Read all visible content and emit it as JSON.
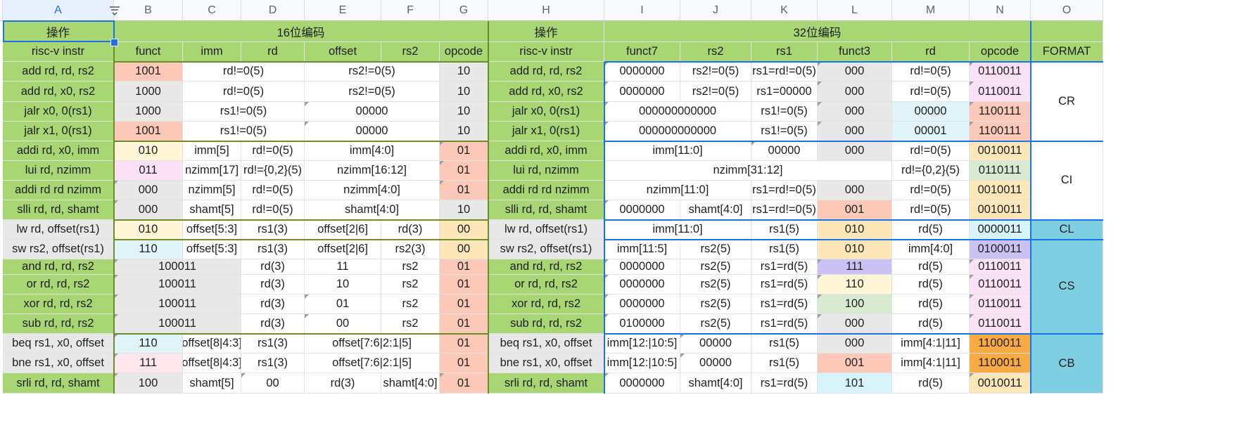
{
  "columns": [
    "A",
    "B",
    "C",
    "D",
    "E",
    "F",
    "G",
    "H",
    "I",
    "J",
    "K",
    "L",
    "M",
    "N",
    "O"
  ],
  "selected_column": "A",
  "palette": {
    "green": "#a8d672",
    "gray": "#e8e8e8",
    "salmon": "#fcc9b9",
    "pink": "#fbe1f5",
    "lightpink": "#fde7ec",
    "yellow": "#fff5d7",
    "peach": "#fde6b7",
    "lightblue": "#e0f4fa",
    "sage": "#d9ead3",
    "lavender": "#cbc1f2",
    "orange": "#f9aa42",
    "aqua": "#d7f3fb",
    "cyan": "#7ecfe2",
    "blue": "#1a73e8",
    "olive": "#6e8c2a"
  },
  "rows": [
    [
      {
        "c": 0,
        "s": 1,
        "t": "操作",
        "bg": "green"
      },
      {
        "c": 1,
        "s": 6,
        "t": "16位编码",
        "bg": "green"
      },
      {
        "c": 7,
        "s": 1,
        "t": "操作",
        "bg": "green"
      },
      {
        "c": 8,
        "s": 6,
        "t": "32位编码",
        "bg": "green"
      },
      {
        "c": 14,
        "s": 1,
        "t": "",
        "bg": "green"
      }
    ],
    [
      {
        "c": 0,
        "t": "risc-v instr",
        "bg": "green"
      },
      {
        "c": 1,
        "t": "funct",
        "bg": "green"
      },
      {
        "c": 2,
        "t": "imm",
        "bg": "green"
      },
      {
        "c": 3,
        "t": "rd",
        "bg": "green"
      },
      {
        "c": 4,
        "t": "offset",
        "bg": "green"
      },
      {
        "c": 5,
        "t": "rs2",
        "bg": "green"
      },
      {
        "c": 6,
        "t": "opcode",
        "bg": "green"
      },
      {
        "c": 7,
        "t": "risc-v instr",
        "bg": "green"
      },
      {
        "c": 8,
        "t": "funct7",
        "bg": "green"
      },
      {
        "c": 9,
        "t": "rs2",
        "bg": "green"
      },
      {
        "c": 10,
        "t": "rs1",
        "bg": "green"
      },
      {
        "c": 11,
        "t": "funct3",
        "bg": "green"
      },
      {
        "c": 12,
        "t": "rd",
        "bg": "green"
      },
      {
        "c": 13,
        "t": "opcode",
        "bg": "green"
      },
      {
        "c": 14,
        "t": "FORMAT",
        "bg": "green"
      }
    ],
    [
      {
        "c": 0,
        "t": "add rd, rd, rs2",
        "bg": "green"
      },
      {
        "c": 1,
        "t": "1001",
        "bg": "salmon"
      },
      {
        "c": 2,
        "s": 2,
        "t": "rd!=0(5)"
      },
      {
        "c": 4,
        "s": 2,
        "t": "rs2!=0(5)"
      },
      {
        "c": 6,
        "t": "10",
        "bg": "gray"
      },
      {
        "c": 7,
        "t": "add rd, rd, rs2",
        "bg": "green"
      },
      {
        "c": 8,
        "t": "0000000",
        "tri": true
      },
      {
        "c": 9,
        "t": "rs2!=0(5)"
      },
      {
        "c": 10,
        "t": "rs1=rd!=0(5)"
      },
      {
        "c": 11,
        "t": "000",
        "bg": "gray",
        "tri": true
      },
      {
        "c": 12,
        "t": "rd!=0(5)"
      },
      {
        "c": 13,
        "t": "0110011",
        "bg": "pink",
        "tri": true
      },
      {
        "c": 14,
        "t": "CR",
        "rs": 4
      }
    ],
    [
      {
        "c": 0,
        "t": "add rd, x0, rs2",
        "bg": "green"
      },
      {
        "c": 1,
        "t": "1000",
        "bg": "gray"
      },
      {
        "c": 2,
        "s": 2,
        "t": "rd!=0(5)"
      },
      {
        "c": 4,
        "s": 2,
        "t": "rs2!=0(5)"
      },
      {
        "c": 6,
        "t": "10",
        "bg": "gray"
      },
      {
        "c": 7,
        "t": "add rd, x0, rs2",
        "bg": "green"
      },
      {
        "c": 8,
        "t": "0000000",
        "tri": true
      },
      {
        "c": 9,
        "t": "rs2!=0(5)"
      },
      {
        "c": 10,
        "t": "rs1=00000"
      },
      {
        "c": 11,
        "t": "000",
        "bg": "gray",
        "tri": true
      },
      {
        "c": 12,
        "t": "rd!=0(5)"
      },
      {
        "c": 13,
        "t": "0110011",
        "bg": "pink",
        "tri": true
      }
    ],
    [
      {
        "c": 0,
        "t": "jalr x0, 0(rs1)",
        "bg": "green"
      },
      {
        "c": 1,
        "t": "1000",
        "bg": "gray"
      },
      {
        "c": 2,
        "s": 2,
        "t": "rs1!=0(5)"
      },
      {
        "c": 4,
        "s": 2,
        "t": "00000",
        "tri": true
      },
      {
        "c": 6,
        "t": "10",
        "bg": "gray"
      },
      {
        "c": 7,
        "t": "jalr x0, 0(rs1)",
        "bg": "green"
      },
      {
        "c": 8,
        "s": 2,
        "t": "000000000000",
        "tri": true
      },
      {
        "c": 10,
        "t": "rs1!=0(5)"
      },
      {
        "c": 11,
        "t": "000",
        "bg": "gray",
        "tri": true
      },
      {
        "c": 12,
        "t": "00000",
        "bg": "lightblue"
      },
      {
        "c": 13,
        "t": "1100111",
        "bg": "salmon",
        "tri": true
      }
    ],
    [
      {
        "c": 0,
        "t": "jalr x1, 0(rs1)",
        "bg": "green"
      },
      {
        "c": 1,
        "t": "1001",
        "bg": "salmon"
      },
      {
        "c": 2,
        "s": 2,
        "t": "rs1!=0(5)"
      },
      {
        "c": 4,
        "s": 2,
        "t": "00000",
        "tri": true
      },
      {
        "c": 6,
        "t": "10",
        "bg": "gray"
      },
      {
        "c": 7,
        "t": "jalr x1, 0(rs1)",
        "bg": "green"
      },
      {
        "c": 8,
        "s": 2,
        "t": "000000000000",
        "tri": true
      },
      {
        "c": 10,
        "t": "rs1!=0(5)"
      },
      {
        "c": 11,
        "t": "000",
        "bg": "gray",
        "tri": true
      },
      {
        "c": 12,
        "t": "00001",
        "bg": "lightblue"
      },
      {
        "c": 13,
        "t": "1100111",
        "bg": "salmon",
        "tri": true
      }
    ],
    [
      {
        "c": 0,
        "t": "addi rd, x0, imm",
        "bg": "green"
      },
      {
        "c": 1,
        "t": "010",
        "bg": "yellow"
      },
      {
        "c": 2,
        "t": "imm[5]"
      },
      {
        "c": 3,
        "t": "rd!=0(5)"
      },
      {
        "c": 4,
        "s": 2,
        "t": "imm[4:0]"
      },
      {
        "c": 6,
        "t": "01",
        "bg": "salmon",
        "tri": true
      },
      {
        "c": 7,
        "t": "addi rd, x0, imm",
        "bg": "green"
      },
      {
        "c": 8,
        "s": 2,
        "t": "imm[11:0]"
      },
      {
        "c": 10,
        "t": "00000",
        "tri": true
      },
      {
        "c": 11,
        "t": "000",
        "bg": "gray"
      },
      {
        "c": 12,
        "t": "rd!=0(5)"
      },
      {
        "c": 13,
        "t": "0010011",
        "bg": "peach"
      },
      {
        "c": 14,
        "t": "CI",
        "rs": 4
      }
    ],
    [
      {
        "c": 0,
        "t": "lui rd, nzimm",
        "bg": "green"
      },
      {
        "c": 1,
        "t": "011",
        "bg": "pink"
      },
      {
        "c": 2,
        "t": "nzimm[17]"
      },
      {
        "c": 3,
        "t": "rd!={0,2}(5)"
      },
      {
        "c": 4,
        "s": 2,
        "t": "nzimm[16:12]"
      },
      {
        "c": 6,
        "t": "01",
        "bg": "salmon",
        "tri": true
      },
      {
        "c": 7,
        "t": "lui rd, nzimm",
        "bg": "green"
      },
      {
        "c": 8,
        "s": 4,
        "t": "nzimm[31:12]"
      },
      {
        "c": 12,
        "t": "rd!={0,2}(5)"
      },
      {
        "c": 13,
        "t": "0110111",
        "bg": "sage"
      }
    ],
    [
      {
        "c": 0,
        "t": "addi rd rd nzimm",
        "bg": "green"
      },
      {
        "c": 1,
        "t": "000",
        "bg": "gray",
        "tri": true
      },
      {
        "c": 2,
        "t": "nzimm[5]"
      },
      {
        "c": 3,
        "t": "rd!=0(5)"
      },
      {
        "c": 4,
        "s": 2,
        "t": "nzimm[4:0]"
      },
      {
        "c": 6,
        "t": "01",
        "bg": "salmon",
        "tri": true
      },
      {
        "c": 7,
        "t": "addi rd rd nzimm",
        "bg": "green"
      },
      {
        "c": 8,
        "s": 2,
        "t": "nzimm[11:0]"
      },
      {
        "c": 10,
        "t": "rs1=rd!=0(5)"
      },
      {
        "c": 11,
        "t": "000",
        "bg": "gray"
      },
      {
        "c": 12,
        "t": "rd!=0(5)"
      },
      {
        "c": 13,
        "t": "0010011",
        "bg": "peach"
      }
    ],
    [
      {
        "c": 0,
        "t": "slli rd, rd, shamt",
        "bg": "green"
      },
      {
        "c": 1,
        "t": "000",
        "bg": "gray",
        "tri": true
      },
      {
        "c": 2,
        "t": "shamt[5]"
      },
      {
        "c": 3,
        "t": "rd!=0(5)"
      },
      {
        "c": 4,
        "s": 2,
        "t": "shamt[4:0]"
      },
      {
        "c": 6,
        "t": "10",
        "bg": "gray"
      },
      {
        "c": 7,
        "t": "slli rd, rd, shamt",
        "bg": "green"
      },
      {
        "c": 8,
        "t": "0000000",
        "tri": true
      },
      {
        "c": 9,
        "t": "shamt[4:0]"
      },
      {
        "c": 10,
        "t": "rs1=rd!=0(5)"
      },
      {
        "c": 11,
        "t": "001",
        "bg": "salmon"
      },
      {
        "c": 12,
        "t": "rd!=0(5)"
      },
      {
        "c": 13,
        "t": "0010011",
        "bg": "peach"
      }
    ],
    [
      {
        "c": 0,
        "t": "lw rd, offset(rs1)",
        "bg": "gray"
      },
      {
        "c": 1,
        "t": "010",
        "bg": "yellow"
      },
      {
        "c": 2,
        "t": "offset[5:3]"
      },
      {
        "c": 3,
        "t": "rs1(3)"
      },
      {
        "c": 4,
        "t": "offset[2|6]"
      },
      {
        "c": 5,
        "t": "rd(3)"
      },
      {
        "c": 6,
        "t": "00",
        "bg": "peach"
      },
      {
        "c": 7,
        "t": "lw rd, offset(rs1)",
        "bg": "gray"
      },
      {
        "c": 8,
        "s": 2,
        "t": "imm[11:0]"
      },
      {
        "c": 10,
        "t": "rs1(5)"
      },
      {
        "c": 11,
        "t": "010",
        "bg": "peach"
      },
      {
        "c": 12,
        "t": "rd(5)"
      },
      {
        "c": 13,
        "t": "0000011",
        "bg": "aqua"
      },
      {
        "c": 14,
        "t": "CL",
        "bg": "cyan"
      }
    ],
    [
      {
        "c": 0,
        "t": "sw rs2, offset(rs1)",
        "bg": "gray"
      },
      {
        "c": 1,
        "t": "110",
        "bg": "lightblue"
      },
      {
        "c": 2,
        "t": "offset[5:3]"
      },
      {
        "c": 3,
        "t": "rs1(3)"
      },
      {
        "c": 4,
        "t": "offset[2|6]"
      },
      {
        "c": 5,
        "t": "rs2(3)"
      },
      {
        "c": 6,
        "t": "00",
        "bg": "peach"
      },
      {
        "c": 7,
        "t": "sw rs2, offset(rs1)",
        "bg": "gray"
      },
      {
        "c": 8,
        "t": "imm[11:5]"
      },
      {
        "c": 9,
        "t": "rs2(5)"
      },
      {
        "c": 10,
        "t": "rs1(5)"
      },
      {
        "c": 11,
        "t": "010",
        "bg": "peach"
      },
      {
        "c": 12,
        "t": "imm[4:0]"
      },
      {
        "c": 13,
        "t": "0100011",
        "bg": "lavender"
      },
      {
        "c": 14,
        "t": "CS",
        "bg": "cyan",
        "rs": 5
      }
    ],
    [
      {
        "c": 0,
        "t": "and rd, rd, rs2",
        "bg": "green"
      },
      {
        "c": 1,
        "s": 2,
        "t": "100011",
        "bg": "gray",
        "tri": true
      },
      {
        "c": 3,
        "t": "rd(3)"
      },
      {
        "c": 4,
        "t": "11"
      },
      {
        "c": 5,
        "t": "rs2"
      },
      {
        "c": 6,
        "t": "01",
        "bg": "salmon"
      },
      {
        "c": 7,
        "t": "and rd, rd, rs2",
        "bg": "green"
      },
      {
        "c": 8,
        "t": "0000000",
        "tri": true
      },
      {
        "c": 9,
        "t": "rs2(5)"
      },
      {
        "c": 10,
        "t": "rs1=rd(5)"
      },
      {
        "c": 11,
        "t": "111",
        "bg": "lavender",
        "tri": true
      },
      {
        "c": 12,
        "t": "rd(5)"
      },
      {
        "c": 13,
        "t": "0110011",
        "bg": "pink",
        "tri": true
      }
    ],
    [
      {
        "c": 0,
        "t": "or rd, rd, rs2",
        "bg": "green"
      },
      {
        "c": 1,
        "s": 2,
        "t": "100011",
        "bg": "gray",
        "tri": true
      },
      {
        "c": 3,
        "t": "rd(3)"
      },
      {
        "c": 4,
        "t": "10"
      },
      {
        "c": 5,
        "t": "rs2"
      },
      {
        "c": 6,
        "t": "01",
        "bg": "salmon"
      },
      {
        "c": 7,
        "t": "or rd, rd, rs2",
        "bg": "green"
      },
      {
        "c": 8,
        "t": "0000000",
        "tri": true
      },
      {
        "c": 9,
        "t": "rs2(5)"
      },
      {
        "c": 10,
        "t": "rs1=rd(5)"
      },
      {
        "c": 11,
        "t": "110",
        "bg": "yellow",
        "tri": true
      },
      {
        "c": 12,
        "t": "rd(5)"
      },
      {
        "c": 13,
        "t": "0110011",
        "bg": "pink",
        "tri": true
      }
    ],
    [
      {
        "c": 0,
        "t": "xor rd, rd, rs2",
        "bg": "green"
      },
      {
        "c": 1,
        "s": 2,
        "t": "100011",
        "bg": "gray",
        "tri": true
      },
      {
        "c": 3,
        "t": "rd(3)"
      },
      {
        "c": 4,
        "t": "01",
        "tri": true
      },
      {
        "c": 5,
        "t": "rs2"
      },
      {
        "c": 6,
        "t": "01",
        "bg": "salmon"
      },
      {
        "c": 7,
        "t": "xor rd, rd, rs2",
        "bg": "green"
      },
      {
        "c": 8,
        "t": "0000000",
        "tri": true
      },
      {
        "c": 9,
        "t": "rs2(5)"
      },
      {
        "c": 10,
        "t": "rs1=rd(5)"
      },
      {
        "c": 11,
        "t": "100",
        "bg": "sage",
        "tri": true
      },
      {
        "c": 12,
        "t": "rd(5)"
      },
      {
        "c": 13,
        "t": "0110011",
        "bg": "pink",
        "tri": true
      }
    ],
    [
      {
        "c": 0,
        "t": "sub rd, rd, rs2",
        "bg": "green"
      },
      {
        "c": 1,
        "s": 2,
        "t": "100011",
        "bg": "gray",
        "tri": true
      },
      {
        "c": 3,
        "t": "rd(3)"
      },
      {
        "c": 4,
        "t": "00",
        "tri": true
      },
      {
        "c": 5,
        "t": "rs2"
      },
      {
        "c": 6,
        "t": "01",
        "bg": "salmon"
      },
      {
        "c": 7,
        "t": "sub rd, rd, rs2",
        "bg": "green"
      },
      {
        "c": 8,
        "t": "0100000",
        "tri": true
      },
      {
        "c": 9,
        "t": "rs2(5)"
      },
      {
        "c": 10,
        "t": "rs1=rd(5)"
      },
      {
        "c": 11,
        "t": "000",
        "bg": "gray",
        "tri": true
      },
      {
        "c": 12,
        "t": "rd(5)"
      },
      {
        "c": 13,
        "t": "0110011",
        "bg": "pink",
        "tri": true
      }
    ],
    [
      {
        "c": 0,
        "t": "beq rs1, x0, offset",
        "bg": "gray"
      },
      {
        "c": 1,
        "t": "110",
        "bg": "lightblue",
        "tri": true
      },
      {
        "c": 2,
        "t": "offset[8|4:3]"
      },
      {
        "c": 3,
        "t": "rs1(3)"
      },
      {
        "c": 4,
        "s": 2,
        "t": "offset[7:6|2:1|5]"
      },
      {
        "c": 6,
        "t": "01",
        "bg": "salmon"
      },
      {
        "c": 7,
        "t": "beq rs1, x0, offset",
        "bg": "gray"
      },
      {
        "c": 8,
        "t": "imm[12:|10:5]"
      },
      {
        "c": 9,
        "t": "00000",
        "tri": true
      },
      {
        "c": 10,
        "t": "rs1(5)"
      },
      {
        "c": 11,
        "t": "000",
        "bg": "gray"
      },
      {
        "c": 12,
        "t": "imm[4:1|11]"
      },
      {
        "c": 13,
        "t": "1100011",
        "bg": "orange"
      },
      {
        "c": 14,
        "t": "CB",
        "bg": "cyan",
        "rs": 3
      }
    ],
    [
      {
        "c": 0,
        "t": "bne rs1, x0, offset",
        "bg": "gray"
      },
      {
        "c": 1,
        "t": "111",
        "bg": "lightpink",
        "tri": true
      },
      {
        "c": 2,
        "t": "offset[8|4:3]"
      },
      {
        "c": 3,
        "t": "rs1(3)"
      },
      {
        "c": 4,
        "s": 2,
        "t": "offset[7:6|2:1|5]"
      },
      {
        "c": 6,
        "t": "01",
        "bg": "salmon"
      },
      {
        "c": 7,
        "t": "bne rs1, x0, offset",
        "bg": "gray"
      },
      {
        "c": 8,
        "t": "imm[12:|10:5]"
      },
      {
        "c": 9,
        "t": "00000",
        "tri": true
      },
      {
        "c": 10,
        "t": "rs1(5)"
      },
      {
        "c": 11,
        "t": "001",
        "bg": "salmon"
      },
      {
        "c": 12,
        "t": "imm[4:1|11]"
      },
      {
        "c": 13,
        "t": "1100011",
        "bg": "orange"
      }
    ],
    [
      {
        "c": 0,
        "t": "srli rd, rd, shamt",
        "bg": "green"
      },
      {
        "c": 1,
        "t": "100",
        "bg": "gray",
        "tri": true
      },
      {
        "c": 2,
        "t": "shamt[5]"
      },
      {
        "c": 3,
        "t": "00",
        "tri": true
      },
      {
        "c": 4,
        "t": "rd(3)"
      },
      {
        "c": 5,
        "t": "shamt[4:0]"
      },
      {
        "c": 6,
        "t": "01",
        "bg": "salmon",
        "tri": true
      },
      {
        "c": 7,
        "t": "srli rd, rd, shamt",
        "bg": "green"
      },
      {
        "c": 8,
        "t": "0000000",
        "tri": true
      },
      {
        "c": 9,
        "t": "shamt[4:0]"
      },
      {
        "c": 10,
        "t": "rs1=rd(5)"
      },
      {
        "c": 11,
        "t": "101",
        "bg": "aqua"
      },
      {
        "c": 12,
        "t": "rd(5)"
      },
      {
        "c": 13,
        "t": "0010011",
        "bg": "peach",
        "tri": true
      }
    ]
  ]
}
